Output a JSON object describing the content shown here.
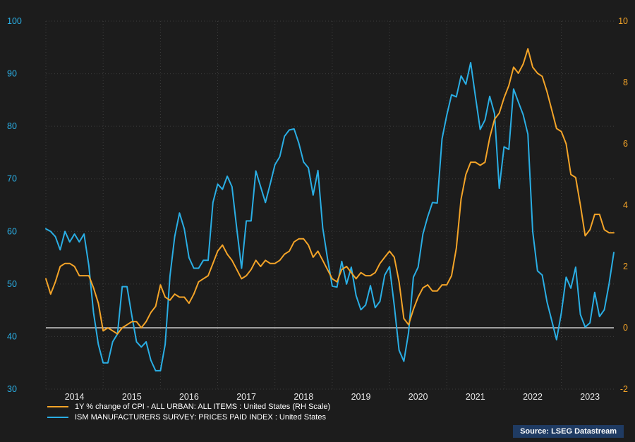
{
  "colors": {
    "background": "#1C1C1C",
    "grid": "#3D3D3D",
    "zero_line": "#EDEDED",
    "axis_left_text": "#2AAEE4",
    "axis_right_text": "#F4A428",
    "year_text": "#E8E8E8",
    "legend_text": "#FFFFFF",
    "source_background": "#1F3B63",
    "source_text": "#FFFFFF"
  },
  "source_badge": {
    "label": "Source: LSEG Datastream"
  },
  "chart_data": {
    "type": "line",
    "title": "",
    "frequency": "monthly",
    "grid": "dotted",
    "legend_position": "bottom-left",
    "x_tick_labels": [
      "2014",
      "2015",
      "2016",
      "2017",
      "2018",
      "2019",
      "2020",
      "2021",
      "2022",
      "2023"
    ],
    "left_axis": {
      "min": 30,
      "max": 100,
      "tick_labels": [
        "100",
        "90",
        "80",
        "70",
        "60",
        "50",
        "40",
        "30"
      ]
    },
    "right_axis": {
      "min": -2,
      "max": 10,
      "tick_labels": [
        "10",
        "8",
        "6",
        "4",
        "2",
        "0",
        "-2"
      ],
      "zero_line": true
    },
    "series": [
      {
        "name": "1Y % change of CPI - ALL URBAN: ALL ITEMS : United States (RH Scale)",
        "axis": "right",
        "color": "#F4A428",
        "values_by_year": {
          "2014": [
            1.6,
            1.1,
            1.5,
            2.0,
            2.1,
            2.1,
            2.0,
            1.7,
            1.7,
            1.7,
            1.3,
            0.8
          ],
          "2015": [
            -0.1,
            0.0,
            -0.1,
            -0.2,
            0.0,
            0.1,
            0.2,
            0.2,
            0.0,
            0.2,
            0.5,
            0.7
          ],
          "2016": [
            1.4,
            1.0,
            0.9,
            1.1,
            1.0,
            1.0,
            0.8,
            1.1,
            1.5,
            1.6,
            1.7,
            2.1
          ],
          "2017": [
            2.5,
            2.7,
            2.4,
            2.2,
            1.9,
            1.6,
            1.7,
            1.9,
            2.2,
            2.0,
            2.2,
            2.1
          ],
          "2018": [
            2.1,
            2.2,
            2.4,
            2.5,
            2.8,
            2.9,
            2.9,
            2.7,
            2.3,
            2.5,
            2.2,
            1.9
          ],
          "2019": [
            1.6,
            1.5,
            1.9,
            2.0,
            1.8,
            1.6,
            1.8,
            1.7,
            1.7,
            1.8,
            2.1,
            2.3
          ],
          "2020": [
            2.5,
            2.3,
            1.5,
            0.3,
            0.1,
            0.6,
            1.0,
            1.3,
            1.4,
            1.2,
            1.2,
            1.4
          ],
          "2021": [
            1.4,
            1.7,
            2.6,
            4.2,
            5.0,
            5.4,
            5.4,
            5.3,
            5.4,
            6.2,
            6.8,
            7.0
          ],
          "2022": [
            7.5,
            7.9,
            8.5,
            8.3,
            8.6,
            9.1,
            8.5,
            8.3,
            8.2,
            7.7,
            7.1,
            6.5
          ],
          "2023": [
            6.4,
            6.0,
            5.0,
            4.9,
            4.0,
            3.0,
            3.2,
            3.7,
            3.7,
            3.2,
            3.1,
            3.1
          ]
        }
      },
      {
        "name": "ISM MANUFACTURERS SURVEY: PRICES PAID INDEX : United States",
        "axis": "left",
        "color": "#2AAEE4",
        "values_by_year": {
          "2014": [
            60.5,
            60.0,
            59.0,
            56.5,
            60.0,
            58.0,
            59.5,
            58.0,
            59.5,
            53.5,
            44.5,
            38.5
          ],
          "2015": [
            35.0,
            35.0,
            39.0,
            40.5,
            49.5,
            49.5,
            44.0,
            39.0,
            38.0,
            39.0,
            35.5,
            33.5
          ],
          "2016": [
            33.5,
            38.5,
            51.5,
            59.0,
            63.5,
            60.5,
            55.0,
            53.0,
            53.0,
            54.5,
            54.5,
            65.5
          ],
          "2017": [
            69.0,
            68.0,
            70.5,
            68.5,
            60.5,
            53.0,
            62.0,
            62.0,
            71.5,
            68.5,
            65.5,
            69.0
          ],
          "2018": [
            72.7,
            74.2,
            78.1,
            79.3,
            79.5,
            76.8,
            73.2,
            72.1,
            66.9,
            71.6,
            60.7,
            54.9
          ],
          "2019": [
            49.6,
            49.4,
            54.3,
            50.0,
            53.2,
            47.8,
            45.1,
            46.0,
            49.7,
            45.5,
            46.7,
            51.7
          ],
          "2020": [
            53.3,
            45.9,
            37.4,
            35.3,
            40.8,
            51.3,
            53.2,
            59.5,
            62.8,
            65.5,
            65.4,
            77.6
          ],
          "2021": [
            82.1,
            86.0,
            85.6,
            89.6,
            88.0,
            92.1,
            85.7,
            79.4,
            81.2,
            85.7,
            82.4,
            68.2
          ],
          "2022": [
            76.1,
            75.6,
            87.1,
            84.6,
            82.2,
            78.5,
            60.0,
            52.5,
            51.7,
            46.6,
            43.0,
            39.4
          ],
          "2023": [
            44.5,
            51.3,
            49.2,
            53.2,
            44.2,
            41.8,
            42.6,
            48.4,
            43.8,
            45.1,
            50.0,
            56.0
          ]
        }
      }
    ]
  }
}
